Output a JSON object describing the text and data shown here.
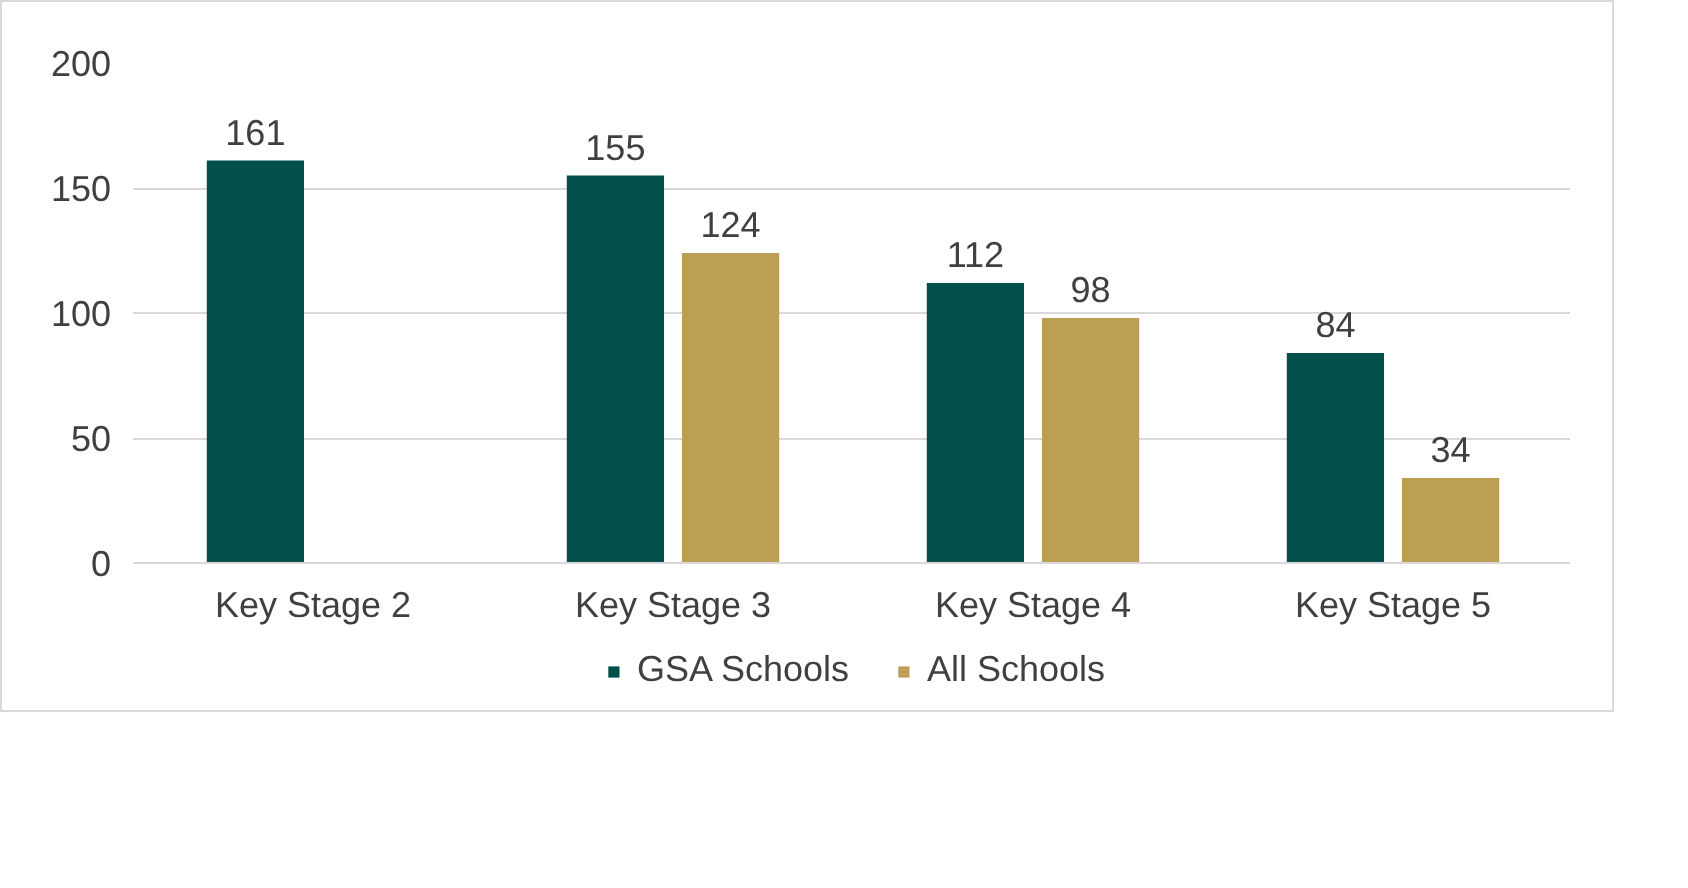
{
  "chart_data": {
    "type": "bar",
    "categories": [
      "Key Stage 2",
      "Key Stage 3",
      "Key Stage 4",
      "Key Stage 5"
    ],
    "series": [
      {
        "name": "GSA Schools",
        "color": "#004f4b",
        "values": [
          161,
          155,
          112,
          84
        ]
      },
      {
        "name": "All Schools",
        "color": "#bd9e55",
        "values": [
          null,
          124,
          98,
          34
        ]
      }
    ],
    "ylim": [
      0,
      200
    ],
    "yticks": [
      0,
      50,
      100,
      150,
      200
    ],
    "grid": "y",
    "legend": "bottom",
    "data_labels": true
  }
}
